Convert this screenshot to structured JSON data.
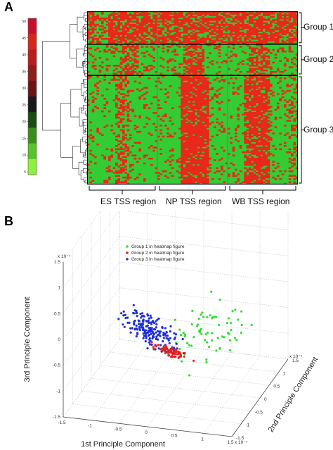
{
  "panel_a": {
    "letter": "A",
    "color_scale": {
      "ticks": [
        "50",
        "45",
        "40",
        "35",
        "30",
        "25",
        "20",
        "15",
        "10",
        "5"
      ],
      "colors_top_to_bottom": [
        "#c8102e",
        "#d4281a",
        "#b81e1e",
        "#8e1f1f",
        "#6a1515",
        "#1a1a1a",
        "#1c4d12",
        "#3a8f1c",
        "#58c427",
        "#8ef23a"
      ]
    },
    "heatmap": {
      "colors": {
        "low": "#33cc33",
        "high": "#e8281a",
        "separator": "#000000"
      },
      "groups": [
        {
          "label": "Group 1",
          "row_fraction": 0.19
        },
        {
          "label": "Group 2",
          "row_fraction": 0.18
        },
        {
          "label": "Group 3",
          "row_fraction": 0.63
        }
      ],
      "regions": [
        "ES TSS region",
        "NP TSS region",
        "WB TSS region"
      ]
    }
  },
  "panel_b": {
    "letter": "B",
    "chart_data": {
      "type": "scatter",
      "projection": "3d",
      "xlabel": "1st Principle Component",
      "ylabel": "2nd Principle Component",
      "zlabel": "3rd Principle Component",
      "x_ticks": [
        "-1.5",
        "-1",
        "-0.5",
        "0",
        "0.5",
        "1",
        "1.5"
      ],
      "x_multiplier": "x 10⁻⁴",
      "y_ticks": [
        "-1.5",
        "-1",
        "-0.5",
        "0",
        "0.5",
        "1",
        "1.5"
      ],
      "y_multiplier": "x 10⁻⁴",
      "z_ticks": [
        "-1.5",
        "-1",
        "-0.5",
        "0",
        "0.5",
        "1",
        "1.5"
      ],
      "z_multiplier": "x 10⁻⁴",
      "grid": true,
      "legend_position": "top-left",
      "series": [
        {
          "name": "Group 1 in heatmap figure",
          "color": "#33dd33"
        },
        {
          "name": "Group 2 in heatmap figure",
          "color": "#dd2222"
        },
        {
          "name": "Group 3 in heatmap figure",
          "color": "#1f2fd6"
        }
      ]
    }
  }
}
